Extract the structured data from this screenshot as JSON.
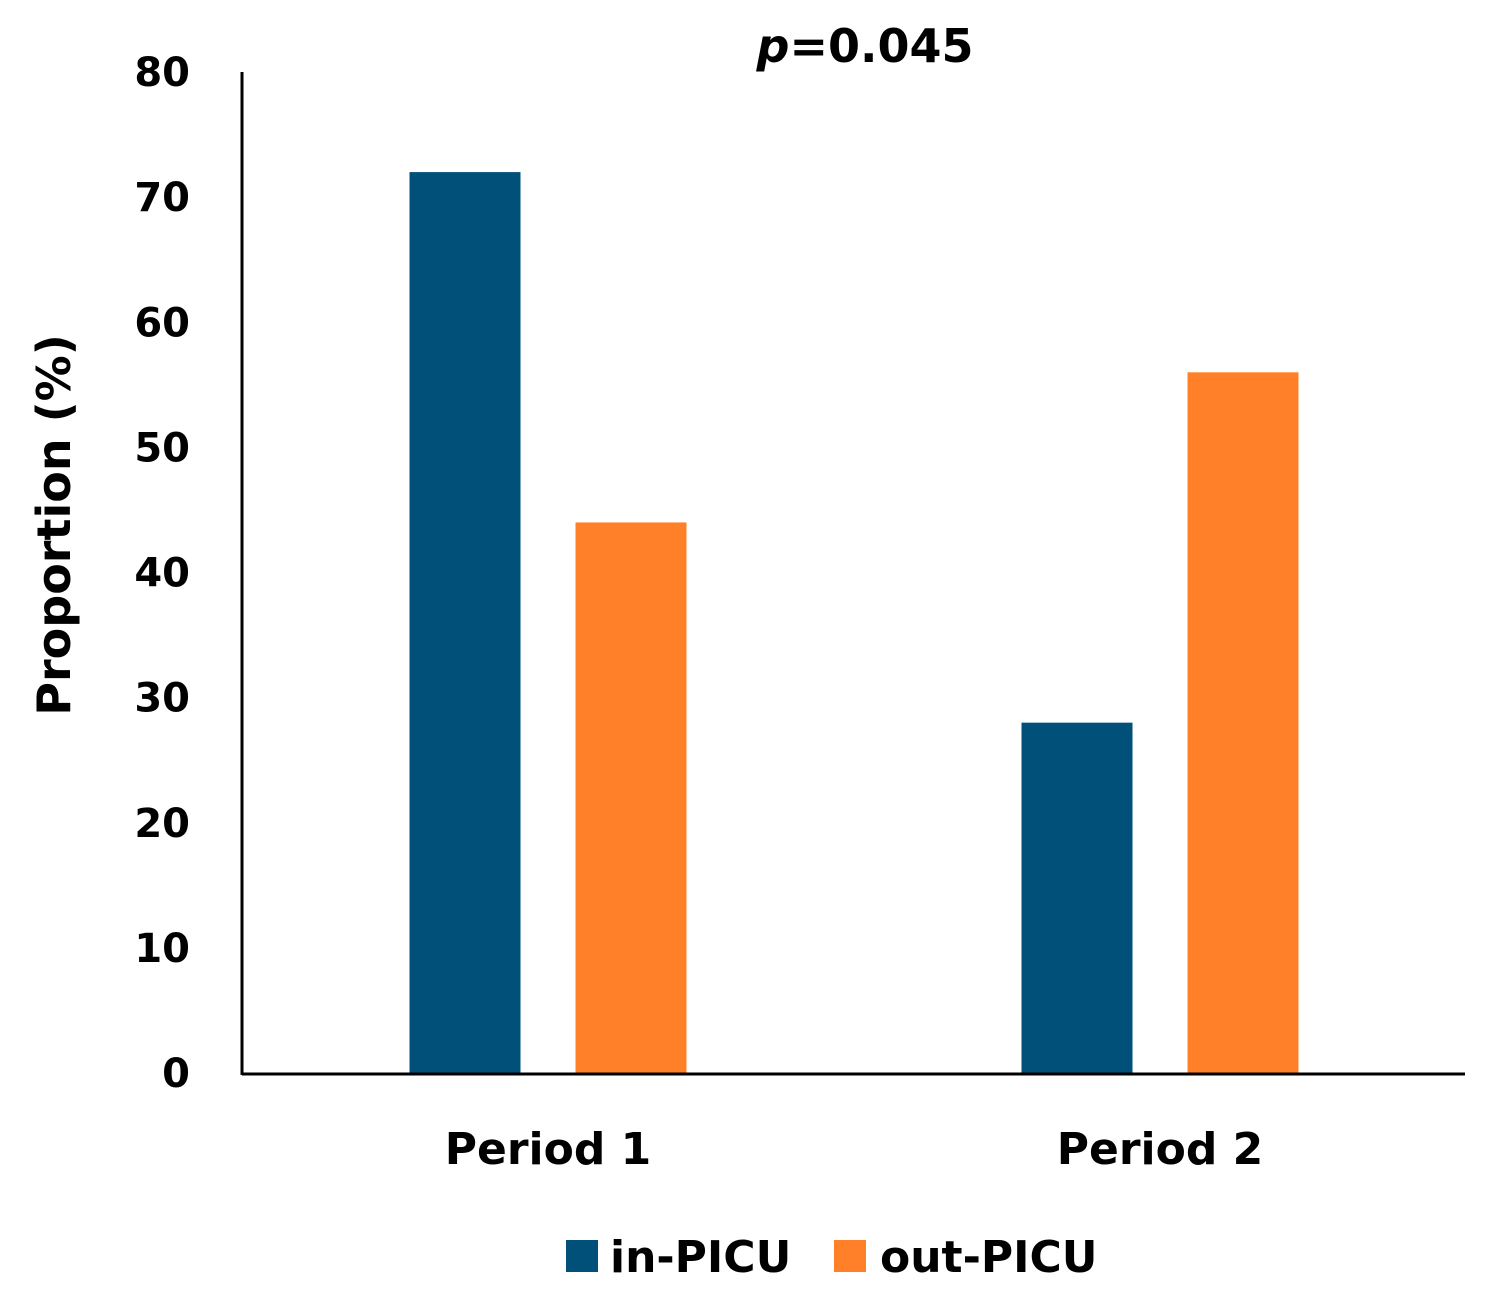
{
  "chart_data": {
    "type": "bar",
    "title": "",
    "annotation": {
      "p_symbol": "p",
      "p_value": "=0.045"
    },
    "xlabel": "",
    "ylabel": "Proportion (%)",
    "ylim": [
      0,
      80
    ],
    "yticks": [
      0,
      10,
      20,
      30,
      40,
      50,
      60,
      70,
      80
    ],
    "categories": [
      "Period 1",
      "Period 2"
    ],
    "series": [
      {
        "name": "in-PICU",
        "color": "#00507A",
        "values": [
          72,
          28
        ]
      },
      {
        "name": "out-PICU",
        "color": "#FF8028",
        "values": [
          44,
          56
        ]
      }
    ],
    "grid": false,
    "legend_position": "bottom"
  }
}
